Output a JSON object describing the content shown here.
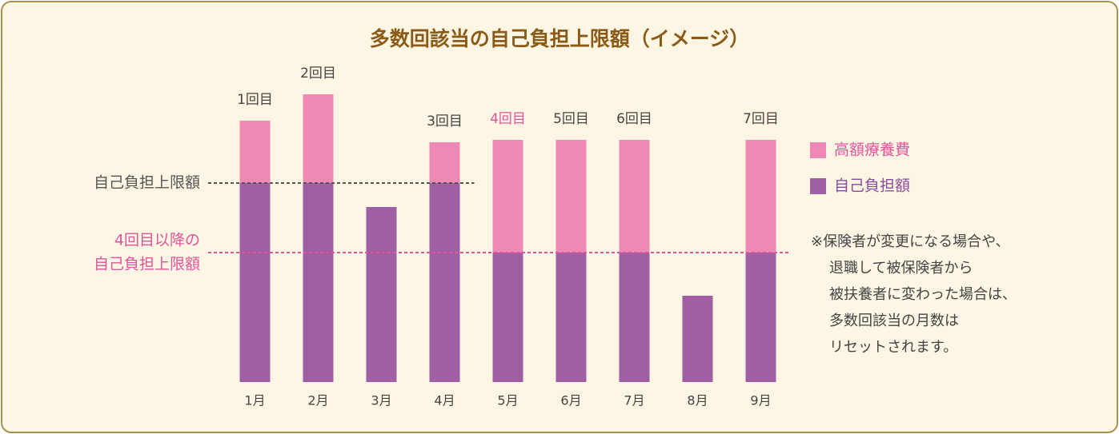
{
  "chart_data": {
    "type": "stacked-bar",
    "title": "多数回該当の自己負担上限額（イメージ）",
    "categories": [
      "1月",
      "2月",
      "3月",
      "4月",
      "5月",
      "6月",
      "7月",
      "8月",
      "9月"
    ],
    "series": [
      {
        "name": "自己負担額",
        "color": "#a15fa3",
        "values": [
          83,
          83,
          73,
          83,
          54,
          54,
          54,
          36,
          54
        ]
      },
      {
        "name": "高額療養費",
        "color": "#ee88b5",
        "values": [
          26,
          37,
          0,
          17,
          47,
          47,
          47,
          0,
          47
        ]
      }
    ],
    "legend_text_colors": [
      "#8a4c9a",
      "#e0559a"
    ],
    "bar_labels": [
      "1回目",
      "2回目",
      null,
      "3回目",
      "4回目",
      "5回目",
      "6回目",
      null,
      "7回目"
    ],
    "bar_label_colors": [
      "#444444",
      "#444444",
      null,
      "#444444",
      "#e0559a",
      "#444444",
      "#444444",
      null,
      "#444444"
    ],
    "ylim": [
      0,
      120
    ],
    "reference_lines": [
      {
        "label": [
          "自己負担上限額"
        ],
        "value": 83,
        "color": "#555555",
        "end_category": 3
      },
      {
        "label": [
          "4回目以降の",
          "自己負担上限額"
        ],
        "value": 54,
        "color": "#e0559a",
        "end_category": 8
      }
    ],
    "note": [
      "※保険者が変更になる場合や、",
      "退職して被保険者から",
      "被扶養者に変わった場合は、",
      "多数回該当の月数は",
      "リセットされます。"
    ]
  }
}
